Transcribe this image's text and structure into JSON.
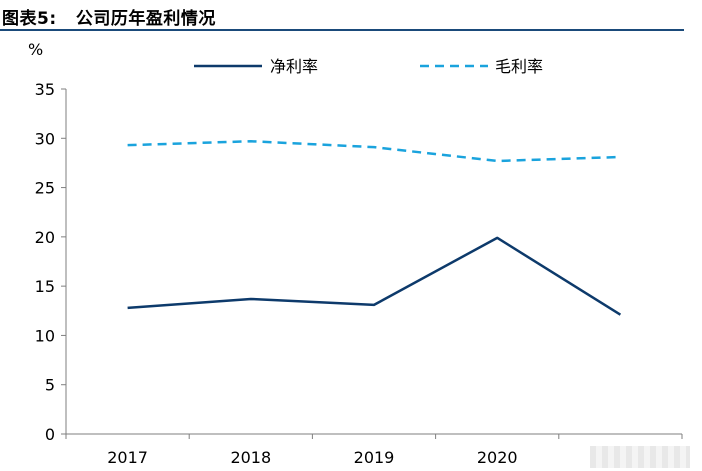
{
  "figure": {
    "title": "图表5:   公司历年盈利情况"
  },
  "chart_data": {
    "type": "line",
    "title": "公司历年盈利情况",
    "ylabel": "%",
    "xlabel": "",
    "ylim": [
      0,
      35
    ],
    "yticks": [
      0,
      5,
      10,
      15,
      20,
      25,
      30,
      35
    ],
    "categories": [
      "2017",
      "2018",
      "2019",
      "2020",
      "2021"
    ],
    "category_labels": [
      "2017",
      "2018",
      "2019",
      "2020",
      ""
    ],
    "series": [
      {
        "name": "净利率",
        "values": [
          12.8,
          13.7,
          13.1,
          19.9,
          12.1
        ],
        "color": "#0d3a6b",
        "style": "solid"
      },
      {
        "name": "毛利率",
        "values": [
          29.3,
          29.7,
          29.1,
          27.7,
          28.1
        ],
        "color": "#1aa3dd",
        "style": "dashed"
      }
    ],
    "legend_position": "top",
    "grid": false
  }
}
